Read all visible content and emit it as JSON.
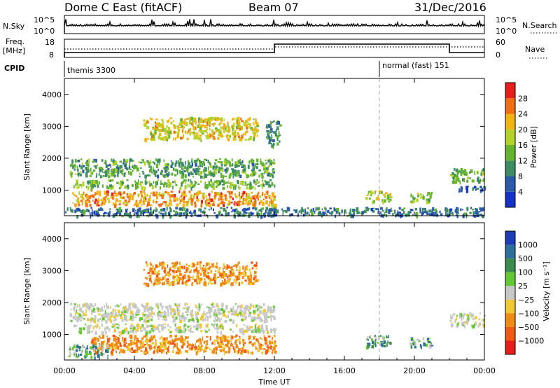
{
  "header": {
    "station": "Dome C East (fitACF)",
    "beam": "Beam 07",
    "date": "31/Dec/2016"
  },
  "status_panels": {
    "nsky": {
      "label": "N.Sky",
      "ticks": [
        "10^5",
        "10^0"
      ]
    },
    "nsearch": {
      "label": "N.Search",
      "ticks": [
        "10^5",
        "10^0"
      ]
    },
    "freq": {
      "label_line1": "Freq.",
      "label_line2": "[MHz]",
      "ticks": [
        "18",
        "8"
      ]
    },
    "nave": {
      "label": "Nave",
      "ticks": [
        "60",
        "0"
      ]
    },
    "cpid": {
      "label": "CPID",
      "modes": [
        {
          "name": "themis 3300",
          "start_hour": 0
        },
        {
          "name": "normal (fast) 151",
          "start_hour": 18
        }
      ]
    }
  },
  "chart_data": [
    {
      "type": "heatmap",
      "title": "",
      "xlabel": "",
      "ylabel": "Slant Range [km]",
      "x_range_hours": [
        0,
        24
      ],
      "ylim": [
        200,
        4500
      ],
      "yticks": [
        "1000",
        "2000",
        "3000",
        "4000"
      ],
      "colorbar": {
        "label": "Power [dB]",
        "ticks": [
          "4",
          "8",
          "12",
          "16",
          "20",
          "24",
          "28"
        ],
        "range": [
          0,
          32
        ],
        "colors": [
          "#1432c8",
          "#2c5aa8",
          "#3c8c64",
          "#64b432",
          "#b4d228",
          "#f0b414",
          "#f06e14",
          "#e61e1e"
        ]
      },
      "echo_regions": [
        {
          "t": [
            0.3,
            12.0
          ],
          "r": [
            1450,
            2000
          ],
          "value": 12
        },
        {
          "t": [
            0.5,
            12.0
          ],
          "r": [
            1100,
            1350
          ],
          "value": 14
        },
        {
          "t": [
            0.4,
            12.0
          ],
          "r": [
            550,
            1000
          ],
          "value": 24
        },
        {
          "t": [
            4.5,
            11.0
          ],
          "r": [
            2600,
            3300
          ],
          "value": 20
        },
        {
          "t": [
            11.5,
            12.3
          ],
          "r": [
            2400,
            3200
          ],
          "value": 10
        },
        {
          "t": [
            0.0,
            24.0
          ],
          "r": [
            220,
            480
          ],
          "value": 8
        },
        {
          "t": [
            17.2,
            18.6
          ],
          "r": [
            650,
            1000
          ],
          "value": 18
        },
        {
          "t": [
            19.7,
            21.0
          ],
          "r": [
            650,
            950
          ],
          "value": 16
        },
        {
          "t": [
            22.0,
            24.0
          ],
          "r": [
            1300,
            1700
          ],
          "value": 13
        },
        {
          "t": [
            22.5,
            24.0
          ],
          "r": [
            1000,
            1150
          ],
          "value": 6
        }
      ]
    },
    {
      "type": "heatmap",
      "title": "",
      "xlabel": "Time UT",
      "ylabel": "Slant Range [km]",
      "x_range_hours": [
        0,
        24
      ],
      "ylim": [
        200,
        4500
      ],
      "yticks": [
        "1000",
        "2000",
        "3000",
        "4000"
      ],
      "xticks": [
        "00:00",
        "04:00",
        "08:00",
        "12:00",
        "16:00",
        "20:00",
        "00:00"
      ],
      "colorbar": {
        "label": "Velocity [m s⁻¹]",
        "ticks": [
          "1000",
          "500",
          "100",
          "25",
          "−25",
          "−100",
          "−500",
          "−1000"
        ],
        "colors": [
          "#1e3cb4",
          "#2e6e9a",
          "#3c8c50",
          "#64c832",
          "#c8c8c8",
          "#f0c832",
          "#f08c14",
          "#f05a14",
          "#e61e1e"
        ]
      },
      "echo_regions": [
        {
          "t": [
            0.3,
            12.0
          ],
          "r": [
            1450,
            2000
          ],
          "class": "low"
        },
        {
          "t": [
            0.5,
            12.0
          ],
          "r": [
            1100,
            1350
          ],
          "class": "low"
        },
        {
          "t": [
            1.5,
            12.0
          ],
          "r": [
            450,
            1000
          ],
          "class": "neg100"
        },
        {
          "t": [
            4.5,
            11.0
          ],
          "r": [
            2600,
            3300
          ],
          "class": "neg100"
        },
        {
          "t": [
            0.2,
            2.5
          ],
          "r": [
            300,
            700
          ],
          "class": "pos"
        },
        {
          "t": [
            17.2,
            18.6
          ],
          "r": [
            650,
            1000
          ],
          "class": "pos"
        },
        {
          "t": [
            19.7,
            21.0
          ],
          "r": [
            650,
            950
          ],
          "class": "pos"
        },
        {
          "t": [
            22.0,
            24.0
          ],
          "r": [
            1300,
            1700
          ],
          "class": "low"
        }
      ]
    }
  ]
}
